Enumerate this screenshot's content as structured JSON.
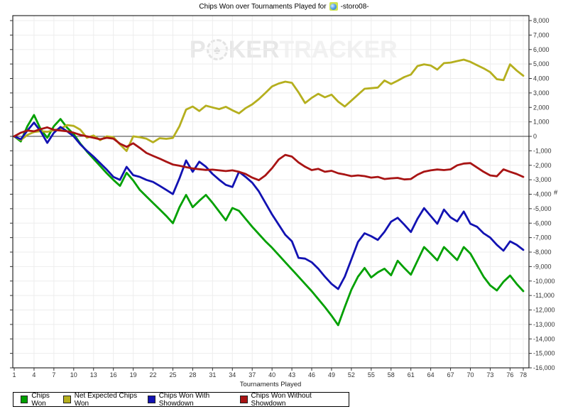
{
  "title": {
    "prefix": "Chips Won over Tournaments Played for",
    "player": "-storo08-",
    "site_icon": "pokerstars-site-icon"
  },
  "watermark": {
    "part1": "P",
    "chip_glyph": "♠",
    "part2": "KER",
    "part3": "TRACKER"
  },
  "axes": {
    "xlabel": "Tournaments Played",
    "ylabel": "#",
    "x_ticks": [
      1,
      4,
      7,
      10,
      13,
      16,
      19,
      22,
      25,
      28,
      31,
      34,
      37,
      40,
      43,
      46,
      49,
      52,
      55,
      58,
      61,
      64,
      67,
      70,
      73,
      76,
      78
    ],
    "y_ticks": [
      8000,
      7000,
      6000,
      5000,
      4000,
      3000,
      2000,
      1000,
      0,
      -1000,
      -2000,
      -3000,
      -4000,
      -5000,
      -6000,
      -7000,
      -8000,
      -9000,
      -10000,
      -11000,
      -12000,
      -13000,
      -14000,
      -15000,
      -16000
    ]
  },
  "colors": {
    "grid": "#ededed",
    "zero_line": "#3c3c3c",
    "border": "#000000",
    "tick_text": "#333333",
    "green": "#00a000",
    "olive": "#b5af1e",
    "blue": "#1212b2",
    "red": "#a81414"
  },
  "legend": [
    {
      "key": "chips-won",
      "label": "Chips Won",
      "color": "#00a000"
    },
    {
      "key": "net-expected-chips-won",
      "label": "Net Expected Chips Won",
      "color": "#b5af1e"
    },
    {
      "key": "chips-won-with-showdown",
      "label": "Chips Won With Showdown",
      "color": "#1212b2"
    },
    {
      "key": "chips-won-without-showdown",
      "label": "Chips Won Without Showdown",
      "color": "#a81414"
    }
  ],
  "chart_data": {
    "type": "line",
    "title": "Chips Won over Tournaments Played for -storo08-",
    "xlabel": "Tournaments Played",
    "ylabel": "#",
    "xlim": [
      1,
      78
    ],
    "ylim": [
      -16000,
      8000
    ],
    "grid": true,
    "legend_position": "bottom-left",
    "x": [
      1,
      2,
      3,
      4,
      5,
      6,
      7,
      8,
      9,
      10,
      11,
      12,
      13,
      14,
      15,
      16,
      17,
      18,
      19,
      20,
      21,
      22,
      23,
      24,
      25,
      26,
      27,
      28,
      29,
      30,
      31,
      32,
      33,
      34,
      35,
      36,
      37,
      38,
      39,
      40,
      41,
      42,
      43,
      44,
      45,
      46,
      47,
      48,
      49,
      50,
      51,
      52,
      53,
      54,
      55,
      56,
      57,
      58,
      59,
      60,
      61,
      62,
      63,
      64,
      65,
      66,
      67,
      68,
      69,
      70,
      71,
      72,
      73,
      74,
      75,
      76,
      77,
      78
    ],
    "series": [
      {
        "name": "Chips Won",
        "key": "chips-won",
        "color": "#00a000",
        "values": [
          0,
          -350,
          700,
          1470,
          500,
          -100,
          700,
          1200,
          600,
          150,
          -500,
          -1050,
          -1550,
          -2050,
          -2550,
          -3010,
          -3420,
          -2520,
          -3050,
          -3700,
          -4150,
          -4600,
          -5050,
          -5500,
          -6000,
          -4900,
          -4050,
          -4900,
          -4450,
          -4050,
          -4600,
          -5200,
          -5800,
          -4950,
          -5150,
          -5700,
          -6250,
          -6750,
          -7250,
          -7700,
          -8200,
          -8700,
          -9200,
          -9700,
          -10200,
          -10700,
          -11250,
          -11800,
          -12400,
          -13050,
          -11800,
          -10600,
          -9700,
          -9100,
          -9750,
          -9400,
          -9150,
          -9600,
          -8600,
          -9100,
          -9560,
          -8600,
          -7650,
          -8100,
          -8570,
          -7650,
          -8100,
          -8550,
          -7650,
          -8100,
          -8900,
          -9700,
          -10300,
          -10650,
          -10050,
          -9620,
          -10200,
          -10700
        ]
      },
      {
        "name": "Net Expected Chips Won",
        "key": "net-expected-chips-won",
        "color": "#b5af1e",
        "values": [
          0,
          -250,
          100,
          300,
          360,
          310,
          420,
          520,
          780,
          720,
          460,
          -100,
          60,
          -260,
          0,
          -60,
          -560,
          -1010,
          0,
          -60,
          -160,
          -410,
          -130,
          -170,
          -110,
          700,
          1850,
          2060,
          1750,
          2120,
          2000,
          1880,
          2040,
          1800,
          1590,
          1950,
          2210,
          2570,
          3000,
          3450,
          3650,
          3780,
          3700,
          3050,
          2300,
          2660,
          2940,
          2700,
          2880,
          2400,
          2060,
          2470,
          2880,
          3290,
          3330,
          3370,
          3860,
          3615,
          3850,
          4100,
          4270,
          4860,
          4975,
          4900,
          4615,
          5060,
          5100,
          5200,
          5300,
          5150,
          4925,
          4700,
          4435,
          3950,
          3880,
          4975,
          4550,
          4190
        ]
      },
      {
        "name": "Chips Won With Showdown",
        "key": "chips-won-with-showdown",
        "color": "#1212b2",
        "values": [
          0,
          -200,
          400,
          950,
          350,
          -450,
          250,
          650,
          350,
          0,
          -550,
          -1000,
          -1400,
          -1850,
          -2300,
          -2800,
          -3010,
          -2110,
          -2680,
          -2800,
          -3010,
          -3150,
          -3420,
          -3700,
          -3990,
          -2900,
          -1670,
          -2450,
          -1750,
          -2100,
          -2600,
          -3000,
          -3350,
          -3500,
          -2450,
          -2800,
          -3200,
          -3800,
          -4600,
          -5400,
          -6100,
          -6800,
          -7250,
          -8400,
          -8450,
          -8700,
          -9150,
          -9700,
          -10200,
          -10550,
          -9700,
          -8500,
          -7300,
          -6700,
          -6900,
          -7160,
          -6600,
          -5900,
          -5630,
          -6100,
          -6610,
          -5700,
          -4960,
          -5500,
          -6040,
          -5060,
          -5600,
          -5880,
          -5200,
          -6040,
          -6250,
          -6700,
          -7000,
          -7500,
          -7900,
          -7260,
          -7500,
          -7850
        ]
      },
      {
        "name": "Chips Won Without Showdown",
        "key": "chips-won-without-showdown",
        "color": "#a81414",
        "values": [
          0,
          250,
          400,
          350,
          500,
          620,
          450,
          400,
          350,
          250,
          100,
          0,
          -100,
          -200,
          -100,
          -160,
          -510,
          -720,
          -480,
          -800,
          -1150,
          -1350,
          -1540,
          -1750,
          -1950,
          -2030,
          -2130,
          -2220,
          -2270,
          -2320,
          -2300,
          -2350,
          -2400,
          -2350,
          -2450,
          -2600,
          -2850,
          -3030,
          -2700,
          -2200,
          -1600,
          -1280,
          -1400,
          -1800,
          -2100,
          -2330,
          -2250,
          -2450,
          -2380,
          -2550,
          -2640,
          -2750,
          -2700,
          -2750,
          -2850,
          -2800,
          -2950,
          -2900,
          -2870,
          -2980,
          -2950,
          -2650,
          -2440,
          -2350,
          -2290,
          -2330,
          -2280,
          -2000,
          -1880,
          -1850,
          -2150,
          -2450,
          -2700,
          -2760,
          -2280,
          -2450,
          -2600,
          -2800
        ]
      }
    ]
  }
}
